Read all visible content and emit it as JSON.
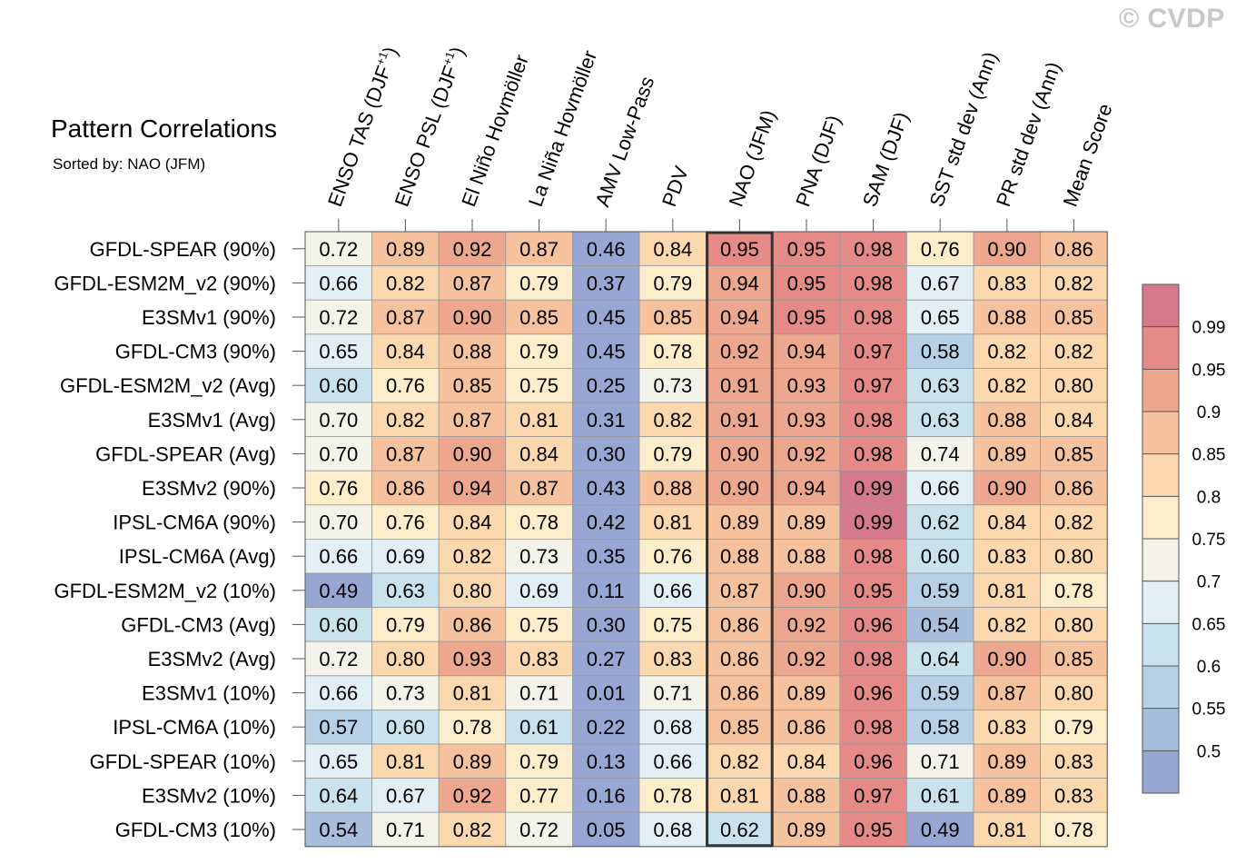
{
  "copyright": "© CVDP",
  "chart_data": {
    "type": "heatmap",
    "title": "Pattern Correlations",
    "subtitle": "Sorted by: NAO (JFM)",
    "columns": [
      {
        "main": "ENSO TAS (DJF",
        "sup": "+1",
        "tail": ")"
      },
      {
        "main": "ENSO PSL (DJF",
        "sup": "+1",
        "tail": ")"
      },
      {
        "main": "El Niño Hovmöller",
        "sup": "",
        "tail": ""
      },
      {
        "main": "La Niña Hovmöller",
        "sup": "",
        "tail": ""
      },
      {
        "main": "AMV Low-Pass",
        "sup": "",
        "tail": ""
      },
      {
        "main": "PDV",
        "sup": "",
        "tail": ""
      },
      {
        "main": "NAO (JFM)",
        "sup": "",
        "tail": ""
      },
      {
        "main": "PNA (DJF)",
        "sup": "",
        "tail": ""
      },
      {
        "main": "SAM (DJF)",
        "sup": "",
        "tail": ""
      },
      {
        "main": "SST std dev (Ann)",
        "sup": "",
        "tail": ""
      },
      {
        "main": "PR std dev (Ann)",
        "sup": "",
        "tail": ""
      },
      {
        "main": "Mean Score",
        "sup": "",
        "tail": ""
      }
    ],
    "highlight_column": 6,
    "rows": [
      {
        "label": "GFDL-SPEAR (90%)",
        "values": [
          "0.72",
          "0.89",
          "0.92",
          "0.87",
          "0.46",
          "0.84",
          "0.95",
          "0.95",
          "0.98",
          "0.76",
          "0.90",
          "0.86"
        ]
      },
      {
        "label": "GFDL-ESM2M_v2 (90%)",
        "values": [
          "0.66",
          "0.82",
          "0.87",
          "0.79",
          "0.37",
          "0.79",
          "0.94",
          "0.95",
          "0.98",
          "0.67",
          "0.83",
          "0.82"
        ]
      },
      {
        "label": "E3SMv1 (90%)",
        "values": [
          "0.72",
          "0.87",
          "0.90",
          "0.85",
          "0.45",
          "0.85",
          "0.94",
          "0.95",
          "0.98",
          "0.65",
          "0.88",
          "0.85"
        ]
      },
      {
        "label": "GFDL-CM3 (90%)",
        "values": [
          "0.65",
          "0.84",
          "0.88",
          "0.79",
          "0.45",
          "0.78",
          "0.92",
          "0.94",
          "0.97",
          "0.58",
          "0.82",
          "0.82"
        ]
      },
      {
        "label": "GFDL-ESM2M_v2 (Avg)",
        "values": [
          "0.60",
          "0.76",
          "0.85",
          "0.75",
          "0.25",
          "0.73",
          "0.91",
          "0.93",
          "0.97",
          "0.63",
          "0.82",
          "0.80"
        ]
      },
      {
        "label": "E3SMv1 (Avg)",
        "values": [
          "0.70",
          "0.82",
          "0.87",
          "0.81",
          "0.31",
          "0.82",
          "0.91",
          "0.93",
          "0.98",
          "0.63",
          "0.88",
          "0.84"
        ]
      },
      {
        "label": "GFDL-SPEAR (Avg)",
        "values": [
          "0.70",
          "0.87",
          "0.90",
          "0.84",
          "0.30",
          "0.79",
          "0.90",
          "0.92",
          "0.98",
          "0.74",
          "0.89",
          "0.85"
        ]
      },
      {
        "label": "E3SMv2 (90%)",
        "values": [
          "0.76",
          "0.86",
          "0.94",
          "0.87",
          "0.43",
          "0.88",
          "0.90",
          "0.94",
          "0.99",
          "0.66",
          "0.90",
          "0.86"
        ]
      },
      {
        "label": "IPSL-CM6A (90%)",
        "values": [
          "0.70",
          "0.76",
          "0.84",
          "0.78",
          "0.42",
          "0.81",
          "0.89",
          "0.89",
          "0.99",
          "0.62",
          "0.84",
          "0.82"
        ]
      },
      {
        "label": "IPSL-CM6A (Avg)",
        "values": [
          "0.66",
          "0.69",
          "0.82",
          "0.73",
          "0.35",
          "0.76",
          "0.88",
          "0.88",
          "0.98",
          "0.60",
          "0.83",
          "0.80"
        ]
      },
      {
        "label": "GFDL-ESM2M_v2 (10%)",
        "values": [
          "0.49",
          "0.63",
          "0.80",
          "0.69",
          "0.11",
          "0.66",
          "0.87",
          "0.90",
          "0.95",
          "0.59",
          "0.81",
          "0.78"
        ]
      },
      {
        "label": "GFDL-CM3 (Avg)",
        "values": [
          "0.60",
          "0.79",
          "0.86",
          "0.75",
          "0.30",
          "0.75",
          "0.86",
          "0.92",
          "0.96",
          "0.54",
          "0.82",
          "0.80"
        ]
      },
      {
        "label": "E3SMv2 (Avg)",
        "values": [
          "0.72",
          "0.80",
          "0.93",
          "0.83",
          "0.27",
          "0.83",
          "0.86",
          "0.92",
          "0.98",
          "0.64",
          "0.90",
          "0.85"
        ]
      },
      {
        "label": "E3SMv1 (10%)",
        "values": [
          "0.66",
          "0.73",
          "0.81",
          "0.71",
          "0.01",
          "0.71",
          "0.86",
          "0.89",
          "0.96",
          "0.59",
          "0.87",
          "0.80"
        ]
      },
      {
        "label": "IPSL-CM6A (10%)",
        "values": [
          "0.57",
          "0.60",
          "0.78",
          "0.61",
          "0.22",
          "0.68",
          "0.85",
          "0.86",
          "0.98",
          "0.58",
          "0.83",
          "0.79"
        ]
      },
      {
        "label": "GFDL-SPEAR (10%)",
        "values": [
          "0.65",
          "0.81",
          "0.89",
          "0.79",
          "0.13",
          "0.66",
          "0.82",
          "0.84",
          "0.96",
          "0.71",
          "0.89",
          "0.83"
        ]
      },
      {
        "label": "E3SMv2 (10%)",
        "values": [
          "0.64",
          "0.67",
          "0.92",
          "0.77",
          "0.16",
          "0.78",
          "0.81",
          "0.88",
          "0.97",
          "0.61",
          "0.89",
          "0.83"
        ]
      },
      {
        "label": "GFDL-CM3 (10%)",
        "values": [
          "0.54",
          "0.71",
          "0.82",
          "0.72",
          "0.05",
          "0.68",
          "0.62",
          "0.89",
          "0.95",
          "0.49",
          "0.81",
          "0.78"
        ]
      }
    ],
    "colorbar": {
      "levels": [
        "0.99",
        "0.95",
        "0.9",
        "0.85",
        "0.8",
        "0.75",
        "0.7",
        "0.65",
        "0.6",
        "0.55",
        "0.5"
      ],
      "level_values": [
        0.99,
        0.95,
        0.9,
        0.85,
        0.8,
        0.75,
        0.7,
        0.65,
        0.6,
        0.55,
        0.5
      ],
      "colors": [
        "#d47a8a",
        "#e58a86",
        "#eea78f",
        "#f6c29e",
        "#fbd8ae",
        "#fdeecb",
        "#f4f3e9",
        "#e2eff4",
        "#cae2ee",
        "#b6d1e6",
        "#a9bddd",
        "#98a6d3"
      ]
    }
  }
}
